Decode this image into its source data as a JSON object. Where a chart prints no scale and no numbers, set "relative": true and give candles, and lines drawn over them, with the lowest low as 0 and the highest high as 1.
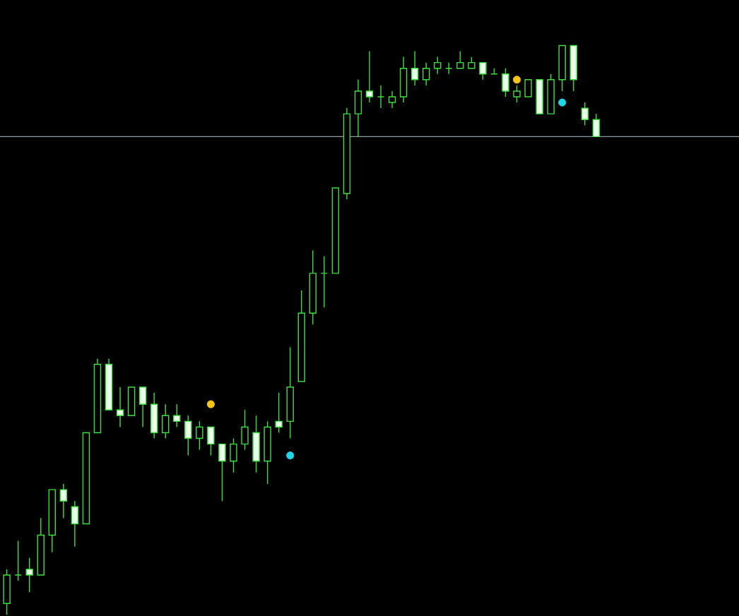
{
  "chart_data": {
    "type": "candlestick",
    "relative": true,
    "categories": [
      null,
      null,
      null,
      null,
      null,
      null,
      null,
      null,
      null,
      null,
      null,
      null,
      null,
      null,
      null,
      null,
      null,
      null,
      null,
      null,
      null,
      null,
      null,
      null,
      null,
      null,
      null,
      null,
      null,
      null,
      null,
      null,
      null,
      null,
      null,
      null,
      null,
      null,
      null,
      null,
      null,
      null,
      null,
      null,
      null,
      null,
      null,
      null,
      null,
      null,
      null,
      null,
      null
    ],
    "series": [
      {
        "color": "#3ce03c",
        "ohlc": [
          [
            0.02,
            0.08,
            0,
            0.07
          ],
          [
            0.07,
            0.13,
            0.06,
            0.07
          ],
          [
            0.08,
            0.1,
            0.04,
            0.07
          ],
          [
            0.07,
            0.17,
            0.07,
            0.14
          ],
          [
            0.14,
            0.22,
            0.11,
            0.22
          ],
          [
            0.22,
            0.23,
            0.17,
            0.2
          ],
          [
            0.19,
            0.2,
            0.12,
            0.16
          ],
          [
            0.16,
            0.32,
            0.16,
            0.32
          ],
          [
            0.32,
            0.45,
            0.32,
            0.44
          ],
          [
            0.44,
            0.45,
            0.36,
            0.36
          ],
          [
            0.36,
            0.4,
            0.33,
            0.35
          ],
          [
            0.35,
            0.4,
            0.35,
            0.4
          ],
          [
            0.4,
            0.4,
            0.33,
            0.37
          ],
          [
            0.37,
            0.39,
            0.31,
            0.32
          ],
          [
            0.32,
            0.37,
            0.31,
            0.35
          ],
          [
            0.35,
            0.37,
            0.33,
            0.34
          ],
          [
            0.34,
            0.35,
            0.28,
            0.31
          ],
          [
            0.31,
            0.34,
            0.29,
            0.33
          ],
          [
            0.33,
            0.33,
            0.28,
            0.3
          ],
          [
            0.3,
            0.3,
            0.2,
            0.27
          ],
          [
            0.27,
            0.31,
            0.25,
            0.3
          ],
          [
            0.3,
            0.36,
            0.29,
            0.33
          ],
          [
            0.32,
            0.35,
            0.25,
            0.27
          ],
          [
            0.27,
            0.34,
            0.23,
            0.33
          ],
          [
            0.34,
            0.39,
            0.32,
            0.33
          ],
          [
            0.34,
            0.47,
            0.31,
            0.4
          ],
          [
            0.41,
            0.57,
            0.41,
            0.53
          ],
          [
            0.53,
            0.64,
            0.51,
            0.6
          ],
          [
            0.6,
            0.63,
            0.54,
            0.6
          ],
          [
            0.6,
            0.75,
            0.6,
            0.75
          ],
          [
            0.74,
            0.89,
            0.73,
            0.88
          ],
          [
            0.88,
            0.94,
            0.84,
            0.92
          ],
          [
            0.92,
            0.99,
            0.9,
            0.91
          ],
          [
            0.91,
            0.93,
            0.89,
            0.91
          ],
          [
            0.9,
            0.92,
            0.89,
            0.91
          ],
          [
            0.91,
            0.98,
            0.9,
            0.96
          ],
          [
            0.96,
            0.99,
            0.93,
            0.94
          ],
          [
            0.94,
            0.97,
            0.93,
            0.96
          ],
          [
            0.96,
            0.98,
            0.95,
            0.97
          ],
          [
            0.96,
            0.97,
            0.95,
            0.96
          ],
          [
            0.96,
            0.99,
            0.96,
            0.97
          ],
          [
            0.96,
            0.98,
            0.96,
            0.97
          ],
          [
            0.97,
            0.97,
            0.94,
            0.95
          ],
          [
            0.95,
            0.96,
            0.95,
            0.95
          ],
          [
            0.95,
            0.96,
            0.91,
            0.92
          ],
          [
            0.91,
            0.93,
            0.9,
            0.92
          ],
          [
            0.91,
            0.94,
            0.91,
            0.94
          ],
          [
            0.94,
            0.94,
            0.88,
            0.88
          ],
          [
            0.88,
            0.95,
            0.88,
            0.94
          ],
          [
            0.94,
            1,
            0.92,
            1
          ],
          [
            1,
            1,
            0.92,
            0.94
          ],
          [
            0.89,
            0.9,
            0.86,
            0.87
          ],
          [
            0.87,
            0.88,
            0.84,
            0.84
          ]
        ]
      },
      {
        "type": "scatter",
        "marker": "circle",
        "color": "#f5c518",
        "values": [
          null,
          null,
          null,
          null,
          null,
          null,
          null,
          null,
          null,
          null,
          null,
          null,
          null,
          null,
          null,
          null,
          null,
          null,
          0.37,
          null,
          null,
          null,
          null,
          null,
          null,
          null,
          null,
          null,
          null,
          null,
          null,
          null,
          null,
          null,
          null,
          null,
          null,
          null,
          null,
          null,
          null,
          null,
          null,
          null,
          null,
          0.94,
          null,
          null,
          null,
          null,
          null,
          null,
          null
        ]
      },
      {
        "type": "scatter",
        "marker": "circle",
        "color": "#1fd6e6",
        "values": [
          null,
          null,
          null,
          null,
          null,
          null,
          null,
          null,
          null,
          null,
          null,
          null,
          null,
          null,
          null,
          null,
          null,
          null,
          null,
          null,
          null,
          null,
          null,
          null,
          null,
          0.28,
          null,
          null,
          null,
          null,
          null,
          null,
          null,
          null,
          null,
          null,
          null,
          null,
          null,
          null,
          null,
          null,
          null,
          null,
          null,
          null,
          null,
          null,
          null,
          0.9,
          null,
          null,
          null
        ]
      }
    ],
    "ref_lines": [
      {
        "axis": "y",
        "value": 0.84,
        "color": "#8a9ba8"
      }
    ]
  }
}
